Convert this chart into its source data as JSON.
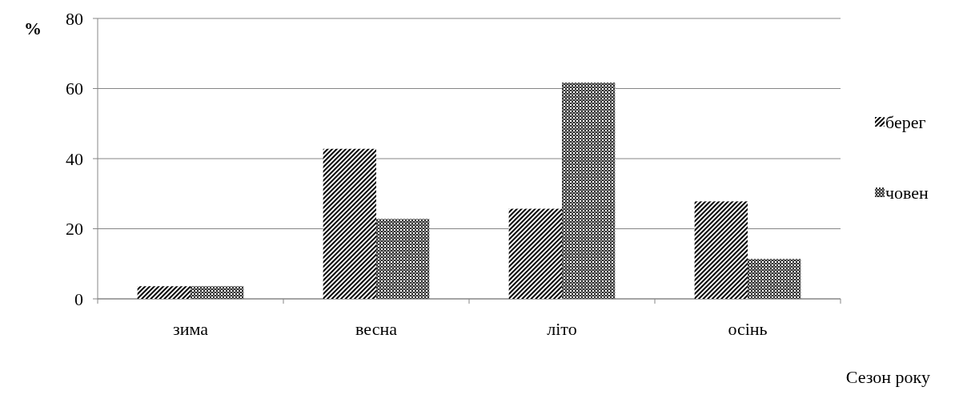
{
  "chart_data": {
    "type": "bar",
    "ylabel": "%",
    "xlabel": "Сезон року",
    "categories": [
      "зима",
      "весна",
      "літо",
      "осінь"
    ],
    "series": [
      {
        "name": "берег",
        "color": "#000000",
        "values": [
          3.6,
          42.8,
          25.7,
          27.8
        ]
      },
      {
        "name": "човен",
        "color": "#333333",
        "values": [
          3.6,
          22.8,
          61.7,
          11.4
        ]
      }
    ],
    "ylim": [
      0,
      80
    ],
    "yticks": [
      0,
      20,
      40,
      60,
      80
    ],
    "grid": "y",
    "legend": "right"
  }
}
